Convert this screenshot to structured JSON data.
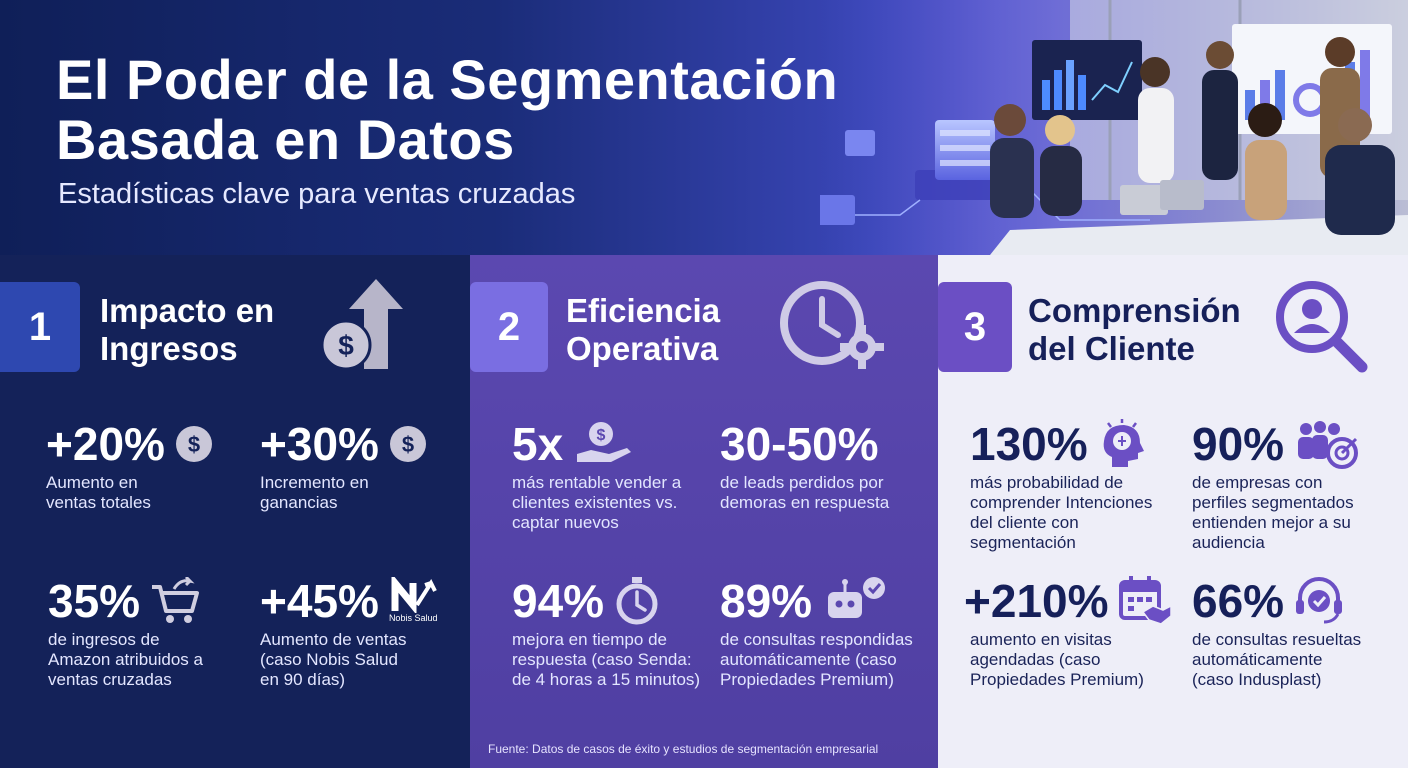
{
  "header": {
    "title_line1": "El Poder de la Segmentación",
    "title_line2": "Basada en Datos",
    "subtitle": "Estadísticas clave para ventas cruzadas"
  },
  "colors": {
    "panel1_bg": "#142259",
    "panel2_bg": "#5b48b0",
    "panel3_bg": "#eeeef8",
    "accent_blue": "#2e48b0",
    "accent_violet": "#6b4fc4",
    "text_dark": "#16205a"
  },
  "panels": [
    {
      "number": "1",
      "title_line1": "Impacto en",
      "title_line2": "Ingresos",
      "icon": "money-growth-arrow-icon",
      "stats": [
        {
          "value": "+20%",
          "desc": [
            "Aumento en",
            "ventas totales"
          ],
          "icon": "dollar-coin-icon"
        },
        {
          "value": "+30%",
          "desc": [
            "Incremento en",
            "ganancias"
          ],
          "icon": "dollar-coin-icon"
        },
        {
          "value": "35%",
          "desc": [
            "de ingresos de",
            "Amazon atribuidos a",
            "ventas cruzadas"
          ],
          "icon": "shopping-cart-icon"
        },
        {
          "value": "+45%",
          "desc": [
            "Aumento de ventas",
            "(caso Nobis Salud",
            "en 90 días)"
          ],
          "icon": "nobis-salud-logo",
          "logo_text": "Nobis Salud"
        }
      ]
    },
    {
      "number": "2",
      "title_line1": "Eficiencia",
      "title_line2": "Operativa",
      "icon": "clock-gear-icon",
      "stats": [
        {
          "value": "5x",
          "desc": [
            "más rentable vender a",
            "clientes existentes vs.",
            "captar nuevos"
          ],
          "icon": "money-hand-icon"
        },
        {
          "value": "30-50%",
          "desc": [
            "de leads perdidos por",
            "demoras en respuesta"
          ],
          "icon": ""
        },
        {
          "value": "94%",
          "desc": [
            "mejora en tiempo de",
            "respuesta (caso Senda:",
            "de 4 horas a 15 minutos)"
          ],
          "icon": "stopwatch-icon"
        },
        {
          "value": "89%",
          "desc": [
            "de consultas respondidas",
            "automáticamente (caso",
            "Propiedades Premium)"
          ],
          "icon": "robot-check-icon"
        }
      ],
      "source": "Fuente: Datos de casos de éxito y estudios de segmentación empresarial"
    },
    {
      "number": "3",
      "title_line1": "Comprensión",
      "title_line2": "del Cliente",
      "icon": "user-search-icon",
      "stats": [
        {
          "value": "130%",
          "desc": [
            "más probabilidad de",
            "comprender Intenciones",
            "del cliente con",
            "segmentación"
          ],
          "icon": "brain-head-icon"
        },
        {
          "value": "90%",
          "desc": [
            "de empresas con",
            "perfiles segmentados",
            "entienden mejor a su",
            "audiencia"
          ],
          "icon": "group-target-icon"
        },
        {
          "value": "+210%",
          "desc": [
            "aumento en visitas",
            "agendadas (caso",
            "Propiedades Premium)"
          ],
          "icon": "calendar-handshake-icon"
        },
        {
          "value": "66%",
          "desc": [
            "de consultas resueltas",
            "automáticamente",
            "(caso Indusplast)"
          ],
          "icon": "headset-check-icon"
        }
      ]
    }
  ]
}
